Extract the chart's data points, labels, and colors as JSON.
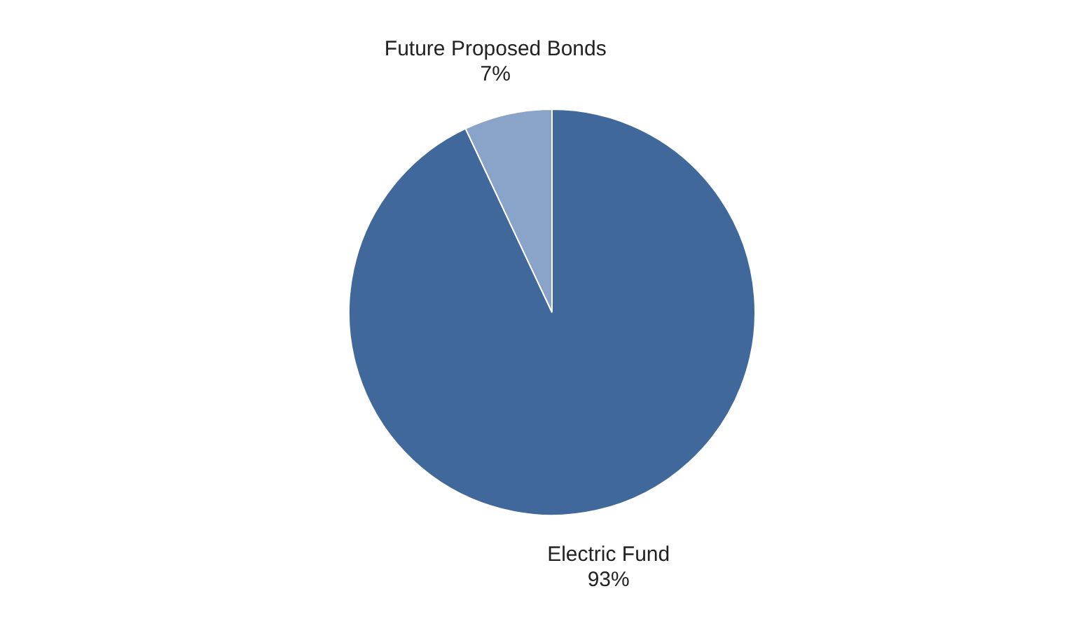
{
  "chart_data": {
    "type": "pie",
    "categories": [
      "Electric Fund",
      "Future Proposed Bonds"
    ],
    "values": [
      93,
      7
    ],
    "colors": [
      "#41689b",
      "#8aa3c9"
    ],
    "value_labels": [
      "93%",
      "7%"
    ],
    "legend": false
  }
}
